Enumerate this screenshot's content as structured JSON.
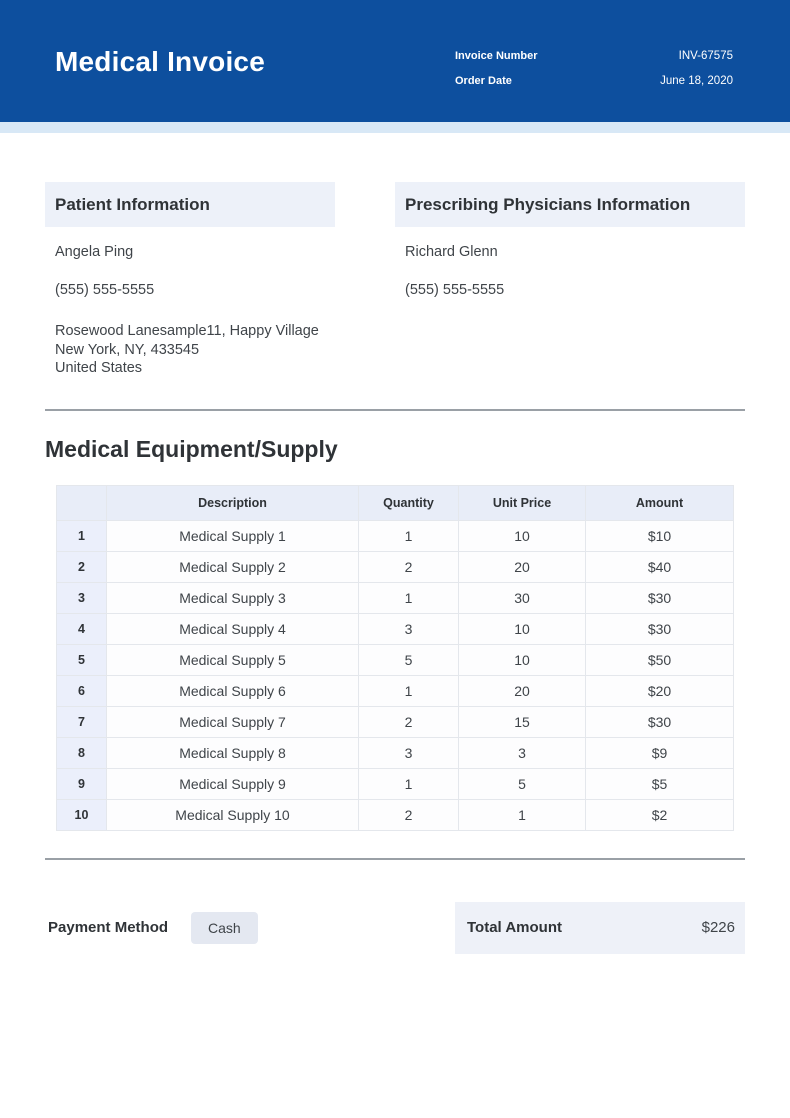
{
  "header": {
    "title": "Medical Invoice",
    "invoice_number_label": "Invoice Number",
    "invoice_number": "INV-67575",
    "order_date_label": "Order Date",
    "order_date": "June 18, 2020"
  },
  "patient": {
    "section_title": "Patient Information",
    "name": "Angela Ping",
    "phone": "(555) 555-5555",
    "address_lines": [
      "Rosewood Lanesample11, Happy Village",
      "New York, NY, 433545",
      "United States"
    ]
  },
  "physician": {
    "section_title": "Prescribing Physicians Information",
    "name": "Richard Glenn",
    "phone": "(555) 555-5555"
  },
  "items": {
    "section_title": "Medical Equipment/Supply",
    "columns": [
      "Description",
      "Quantity",
      "Unit Price",
      "Amount"
    ],
    "rows": [
      {
        "no": "1",
        "description": "Medical Supply 1",
        "quantity": "1",
        "unit_price": "10",
        "amount": "$10"
      },
      {
        "no": "2",
        "description": "Medical Supply 2",
        "quantity": "2",
        "unit_price": "20",
        "amount": "$40"
      },
      {
        "no": "3",
        "description": "Medical Supply 3",
        "quantity": "1",
        "unit_price": "30",
        "amount": "$30"
      },
      {
        "no": "4",
        "description": "Medical Supply 4",
        "quantity": "3",
        "unit_price": "10",
        "amount": "$30"
      },
      {
        "no": "5",
        "description": "Medical Supply 5",
        "quantity": "5",
        "unit_price": "10",
        "amount": "$50"
      },
      {
        "no": "6",
        "description": "Medical Supply 6",
        "quantity": "1",
        "unit_price": "20",
        "amount": "$20"
      },
      {
        "no": "7",
        "description": "Medical Supply 7",
        "quantity": "2",
        "unit_price": "15",
        "amount": "$30"
      },
      {
        "no": "8",
        "description": "Medical Supply 8",
        "quantity": "3",
        "unit_price": "3",
        "amount": "$9"
      },
      {
        "no": "9",
        "description": "Medical Supply 9",
        "quantity": "1",
        "unit_price": "5",
        "amount": "$5"
      },
      {
        "no": "10",
        "description": "Medical Supply 10",
        "quantity": "2",
        "unit_price": "1",
        "amount": "$2"
      }
    ]
  },
  "payment": {
    "method_label": "Payment Method",
    "method": "Cash",
    "total_label": "Total Amount",
    "total": "$226"
  },
  "colors": {
    "header_bg": "#0d4f9e",
    "accent_strip": "#d8e8f6",
    "section_header_bg": "#edf1f9",
    "table_header_bg": "#e8edf8",
    "row_number_bg": "#ebeffb",
    "divider": "#9aa0a6",
    "chip_bg": "#e4e8f1",
    "total_box_bg": "#eef1f8"
  }
}
